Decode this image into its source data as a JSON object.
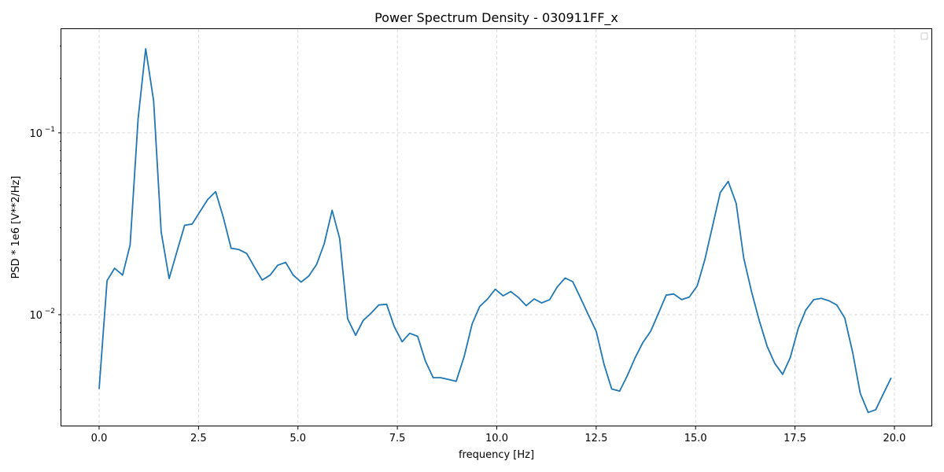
{
  "chart_data": {
    "type": "line",
    "title": "Power Spectrum Density - 030911FF_x",
    "xlabel": "frequency [Hz]",
    "ylabel": "PSD * 1e6 [V**2/Hz]",
    "xlim": [
      -0.95,
      20.95
    ],
    "ylim": [
      0.00243,
      0.372
    ],
    "yscale": "log",
    "grid": true,
    "legend": "top-right (empty)",
    "line_color": "#1f77b4",
    "grid_color": "#d0d0d0",
    "x_ticks": [
      {
        "value": 0.0,
        "label": "0.0"
      },
      {
        "value": 2.5,
        "label": "2.5"
      },
      {
        "value": 5.0,
        "label": "5.0"
      },
      {
        "value": 7.5,
        "label": "7.5"
      },
      {
        "value": 10.0,
        "label": "10.0"
      },
      {
        "value": 12.5,
        "label": "12.5"
      },
      {
        "value": 15.0,
        "label": "15.0"
      },
      {
        "value": 17.5,
        "label": "17.5"
      },
      {
        "value": 20.0,
        "label": "20.0"
      }
    ],
    "y_ticks": [
      {
        "value": 0.01,
        "base": "10",
        "exp": "−2"
      },
      {
        "value": 0.1,
        "base": "10",
        "exp": "−1"
      }
    ],
    "series": [
      {
        "x": [
          0.0,
          0.2,
          0.39,
          0.59,
          0.78,
          0.98,
          1.17,
          1.37,
          1.56,
          1.76,
          1.95,
          2.15,
          2.34,
          2.54,
          2.73,
          2.93,
          3.12,
          3.32,
          3.52,
          3.71,
          3.91,
          4.1,
          4.3,
          4.49,
          4.69,
          4.88,
          5.08,
          5.27,
          5.47,
          5.66,
          5.86,
          6.05,
          6.25,
          6.45,
          6.64,
          6.84,
          7.03,
          7.23,
          7.42,
          7.62,
          7.81,
          8.01,
          8.2,
          8.4,
          8.59,
          8.79,
          8.98,
          9.18,
          9.38,
          9.57,
          9.77,
          9.96,
          10.16,
          10.35,
          10.55,
          10.74,
          10.94,
          11.13,
          11.33,
          11.52,
          11.72,
          11.91,
          12.11,
          12.3,
          12.5,
          12.7,
          12.89,
          13.09,
          13.28,
          13.48,
          13.67,
          13.87,
          14.06,
          14.26,
          14.45,
          14.65,
          14.84,
          15.04,
          15.23,
          15.43,
          15.62,
          15.82,
          16.02,
          16.21,
          16.41,
          16.6,
          16.8,
          16.99,
          17.19,
          17.38,
          17.58,
          17.77,
          17.97,
          18.16,
          18.36,
          18.55,
          18.75,
          18.95,
          19.14,
          19.34,
          19.53,
          19.73,
          19.92
        ],
        "values": [
          0.0039,
          0.0154,
          0.018,
          0.0165,
          0.0242,
          0.12,
          0.29,
          0.15,
          0.0285,
          0.0158,
          0.022,
          0.031,
          0.0315,
          0.037,
          0.043,
          0.0475,
          0.0345,
          0.0232,
          0.0228,
          0.0217,
          0.0182,
          0.0155,
          0.0165,
          0.0187,
          0.0194,
          0.0165,
          0.0151,
          0.0163,
          0.0189,
          0.0245,
          0.0375,
          0.0262,
          0.0095,
          0.0077,
          0.0093,
          0.0102,
          0.0113,
          0.0114,
          0.0086,
          0.0071,
          0.0079,
          0.0076,
          0.0056,
          0.0045,
          0.0045,
          0.0044,
          0.0043,
          0.0059,
          0.0089,
          0.0111,
          0.0122,
          0.0138,
          0.0127,
          0.0134,
          0.0124,
          0.0112,
          0.0122,
          0.0116,
          0.0121,
          0.0142,
          0.0159,
          0.0152,
          0.0123,
          0.01,
          0.0081,
          0.0053,
          0.0039,
          0.0038,
          0.0046,
          0.0058,
          0.007,
          0.0081,
          0.0101,
          0.0128,
          0.013,
          0.0121,
          0.0125,
          0.0144,
          0.02,
          0.031,
          0.047,
          0.054,
          0.041,
          0.0205,
          0.0133,
          0.0093,
          0.0067,
          0.0054,
          0.0047,
          0.0058,
          0.0084,
          0.0106,
          0.0121,
          0.0123,
          0.0119,
          0.0113,
          0.0096,
          0.0062,
          0.0037,
          0.0029,
          0.003,
          0.0037,
          0.0045
        ]
      }
    ]
  }
}
